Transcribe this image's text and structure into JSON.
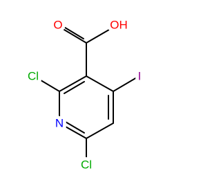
{
  "atoms": {
    "o": "O",
    "oh": "OH",
    "i": "I",
    "cl2": "Cl",
    "n": "N",
    "cl6": "Cl"
  }
}
